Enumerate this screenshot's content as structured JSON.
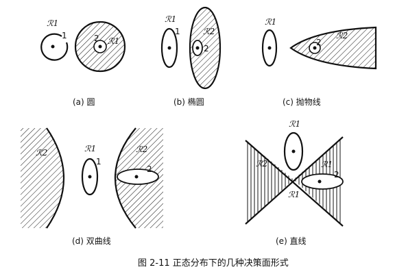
{
  "figure_title": "图 2-11   正态分布下的几种决策面形式",
  "panels": {
    "a": {
      "caption": "(a) 圆",
      "region_labels": [
        "ℛ1",
        "ℛ1"
      ],
      "class_labels": [
        "1",
        "2"
      ]
    },
    "b": {
      "caption": "(b) 椭圆",
      "region_labels": [
        "ℛ1",
        "ℛ2"
      ],
      "class_labels": [
        "1",
        "2"
      ]
    },
    "c": {
      "caption": "(c) 抛物线",
      "region_labels": [
        "ℛ1",
        "ℛ2"
      ],
      "class_labels": [
        "1",
        "2"
      ]
    },
    "d": {
      "caption": "(d) 双曲线",
      "region_labels": [
        "ℛ2",
        "ℛ1",
        "ℛ2"
      ],
      "class_labels": [
        "1",
        "2"
      ]
    },
    "e": {
      "caption": "(e) 直线",
      "region_labels": [
        "ℛ1",
        "ℛ2",
        "ℛ1",
        "ℛ1"
      ],
      "class_labels": [
        "1",
        "2"
      ]
    }
  }
}
